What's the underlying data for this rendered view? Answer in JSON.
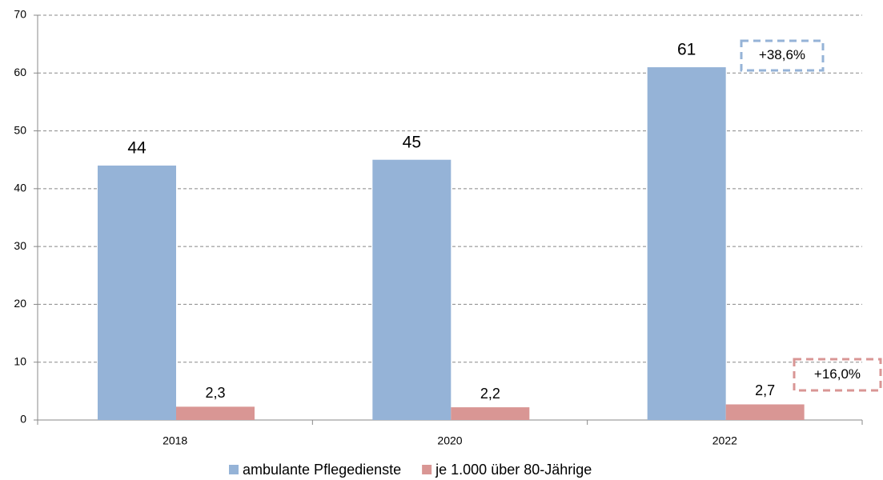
{
  "chart_data": {
    "type": "bar",
    "categories": [
      "2018",
      "2020",
      "2022"
    ],
    "series": [
      {
        "name": "ambulante Pflegedienste",
        "color": "#95b3d7",
        "values": [
          44,
          45,
          61
        ]
      },
      {
        "name": "je 1.000 über 80-Jährige",
        "color": "#d99694",
        "values": [
          2.3,
          2.2,
          2.7
        ],
        "value_labels": [
          "2,3",
          "2,2",
          "2,7"
        ]
      }
    ],
    "ylim": [
      0,
      70
    ],
    "yticks": [
      0,
      10,
      20,
      30,
      40,
      50,
      60,
      70
    ],
    "grid": true,
    "legend": "bottom",
    "annotations": [
      {
        "text": "+38,6%"
      },
      {
        "text": "+16,0%"
      }
    ]
  }
}
